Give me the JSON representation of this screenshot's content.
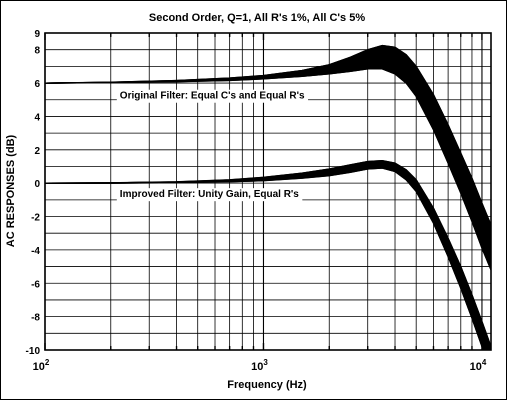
{
  "chart_data": {
    "type": "line",
    "title": "Second Order, Q=1, All R's 1%, All C's 5%",
    "xlabel": "Frequency (Hz)",
    "ylabel": "AC RESPONSES (dB)",
    "x_scale": "log",
    "xlim": [
      100,
      11000
    ],
    "ylim": [
      -10,
      9
    ],
    "grid": true,
    "x_tick_labels": [
      {
        "x": 100,
        "base": "10",
        "exp": "2"
      },
      {
        "x": 1000,
        "base": "10",
        "exp": "3"
      },
      {
        "x": 10000,
        "base": "10",
        "exp": "4"
      }
    ],
    "y_ticks": [
      9,
      8,
      6,
      4,
      2,
      0,
      -2,
      -4,
      -6,
      -8,
      -10
    ],
    "y_tick_labels": [
      "9",
      "8",
      "6",
      "4",
      "2",
      "0",
      "-2",
      "-4",
      "-6",
      "-8",
      "-10"
    ],
    "annotations": [
      {
        "text": "Original Filter: Equal C's and Equal R's",
        "x": 220,
        "y": 5.3
      },
      {
        "text": "Improved Filter: Unity Gain, Equal R's",
        "x": 220,
        "y": -0.6
      }
    ],
    "series": [
      {
        "x": [
          100,
          200,
          400,
          700,
          1000,
          1500,
          2000,
          2500,
          3000,
          3500,
          4000,
          4500,
          5000,
          6000,
          7000,
          8000,
          9000,
          10000,
          11000
        ],
        "upper": [
          6.0,
          6.05,
          6.15,
          6.3,
          6.45,
          6.75,
          7.1,
          7.55,
          8.0,
          8.25,
          8.15,
          7.7,
          7.0,
          5.3,
          3.5,
          1.8,
          0.3,
          -1.2,
          -2.5
        ],
        "lower": [
          6.0,
          6.02,
          6.08,
          6.15,
          6.25,
          6.4,
          6.55,
          6.7,
          6.85,
          6.85,
          6.55,
          6.0,
          5.2,
          3.2,
          1.2,
          -0.6,
          -2.3,
          -3.9,
          -5.2
        ]
      },
      {
        "x": [
          100,
          200,
          400,
          700,
          1000,
          1500,
          2000,
          2500,
          3000,
          3500,
          4000,
          4500,
          5000,
          6000,
          7000,
          8000,
          9000,
          10000,
          11000
        ],
        "upper": [
          0.0,
          0.02,
          0.08,
          0.2,
          0.35,
          0.6,
          0.85,
          1.1,
          1.3,
          1.35,
          1.2,
          0.8,
          0.2,
          -1.5,
          -3.3,
          -5.0,
          -6.7,
          -8.3,
          -9.8
        ],
        "lower": [
          0.0,
          0.0,
          0.03,
          0.08,
          0.15,
          0.3,
          0.45,
          0.65,
          0.85,
          0.9,
          0.7,
          0.2,
          -0.5,
          -2.4,
          -4.4,
          -6.3,
          -8.1,
          -9.8,
          -11.3
        ]
      }
    ]
  }
}
